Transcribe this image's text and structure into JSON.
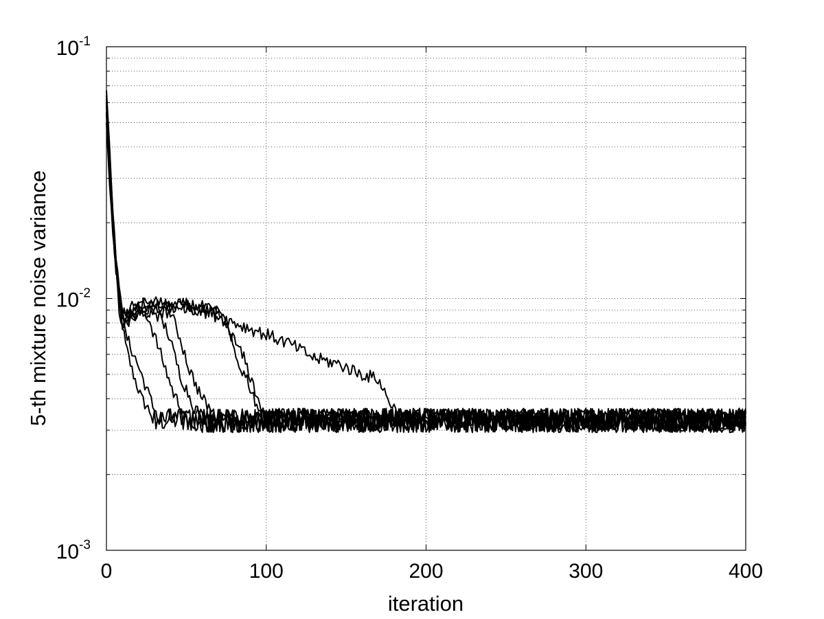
{
  "chart_data": {
    "type": "line",
    "title": "",
    "xlabel": "iteration",
    "ylabel": "5-th mixture noise variance",
    "xlim": [
      0,
      400
    ],
    "ylim": [
      0.001,
      0.1
    ],
    "yscale": "log",
    "grid": true,
    "x_ticks": [
      0,
      100,
      200,
      300,
      400
    ],
    "x_tick_labels": [
      "0",
      "100",
      "200",
      "300",
      "400"
    ],
    "y_ticks": [
      {
        "value": 0.001,
        "base": "10",
        "exp": "-3"
      },
      {
        "value": 0.01,
        "base": "10",
        "exp": "-2"
      },
      {
        "value": 0.1,
        "base": "10",
        "exp": "-1"
      }
    ],
    "line_color": "#000000",
    "steady_level": 0.0033,
    "series": [
      {
        "start": 0.067,
        "early": [
          [
            2,
            0.04
          ],
          [
            5,
            0.016
          ],
          [
            8,
            0.0095
          ],
          [
            12,
            0.0065
          ],
          [
            16,
            0.0052
          ],
          [
            22,
            0.004
          ],
          [
            28,
            0.0035
          ]
        ],
        "plateau_end": 12,
        "drop_end": 28
      },
      {
        "start": 0.06,
        "early": [
          [
            2,
            0.035
          ],
          [
            5,
            0.015
          ],
          [
            8,
            0.009
          ],
          [
            12,
            0.0072
          ],
          [
            18,
            0.0058
          ],
          [
            24,
            0.0046
          ],
          [
            30,
            0.0036
          ]
        ],
        "plateau_end": 14,
        "drop_end": 32
      },
      {
        "start": 0.055,
        "early": [
          [
            2,
            0.03
          ],
          [
            6,
            0.014
          ],
          [
            10,
            0.0085
          ],
          [
            18,
            0.0088
          ],
          [
            26,
            0.0085
          ],
          [
            34,
            0.006
          ],
          [
            42,
            0.0042
          ],
          [
            50,
            0.0034
          ]
        ],
        "plateau_end": 26,
        "drop_end": 50
      },
      {
        "start": 0.05,
        "early": [
          [
            2,
            0.028
          ],
          [
            6,
            0.013
          ],
          [
            10,
            0.0082
          ],
          [
            20,
            0.0092
          ],
          [
            30,
            0.009
          ],
          [
            38,
            0.0075
          ],
          [
            46,
            0.005
          ],
          [
            55,
            0.0037
          ],
          [
            62,
            0.0033
          ]
        ],
        "plateau_end": 32,
        "drop_end": 62
      },
      {
        "start": 0.062,
        "early": [
          [
            2,
            0.032
          ],
          [
            6,
            0.014
          ],
          [
            10,
            0.0078
          ],
          [
            20,
            0.0085
          ],
          [
            30,
            0.009
          ],
          [
            40,
            0.0088
          ],
          [
            46,
            0.007
          ],
          [
            52,
            0.0052
          ],
          [
            60,
            0.004
          ],
          [
            70,
            0.0033
          ]
        ],
        "plateau_end": 42,
        "drop_end": 70
      },
      {
        "start": 0.058,
        "early": [
          [
            2,
            0.03
          ],
          [
            6,
            0.013
          ],
          [
            10,
            0.0085
          ],
          [
            20,
            0.0095
          ],
          [
            30,
            0.0098
          ],
          [
            45,
            0.0092
          ],
          [
            60,
            0.009
          ],
          [
            70,
            0.0088
          ],
          [
            76,
            0.0075
          ],
          [
            82,
            0.0056
          ],
          [
            88,
            0.0048
          ],
          [
            94,
            0.0038
          ],
          [
            100,
            0.0033
          ]
        ],
        "plateau_end": 74,
        "drop_end": 100
      },
      {
        "start": 0.054,
        "early": [
          [
            2,
            0.029
          ],
          [
            6,
            0.013
          ],
          [
            10,
            0.008
          ],
          [
            20,
            0.0088
          ],
          [
            35,
            0.0092
          ],
          [
            50,
            0.0095
          ],
          [
            62,
            0.0092
          ],
          [
            72,
            0.0085
          ],
          [
            80,
            0.0068
          ],
          [
            86,
            0.0058
          ],
          [
            92,
            0.0045
          ],
          [
            98,
            0.0035
          ]
        ],
        "plateau_end": 78,
        "drop_end": 98
      },
      {
        "start": 0.064,
        "early": [
          [
            2,
            0.036
          ],
          [
            6,
            0.014
          ],
          [
            10,
            0.0088
          ],
          [
            20,
            0.0095
          ],
          [
            35,
            0.0096
          ],
          [
            55,
            0.0092
          ],
          [
            70,
            0.0085
          ],
          [
            85,
            0.0078
          ],
          [
            100,
            0.0072
          ],
          [
            115,
            0.0066
          ],
          [
            130,
            0.0058
          ],
          [
            145,
            0.0055
          ],
          [
            160,
            0.005
          ],
          [
            170,
            0.0048
          ],
          [
            176,
            0.004
          ],
          [
            184,
            0.0034
          ]
        ],
        "plateau_end": 174,
        "drop_end": 184
      }
    ]
  }
}
